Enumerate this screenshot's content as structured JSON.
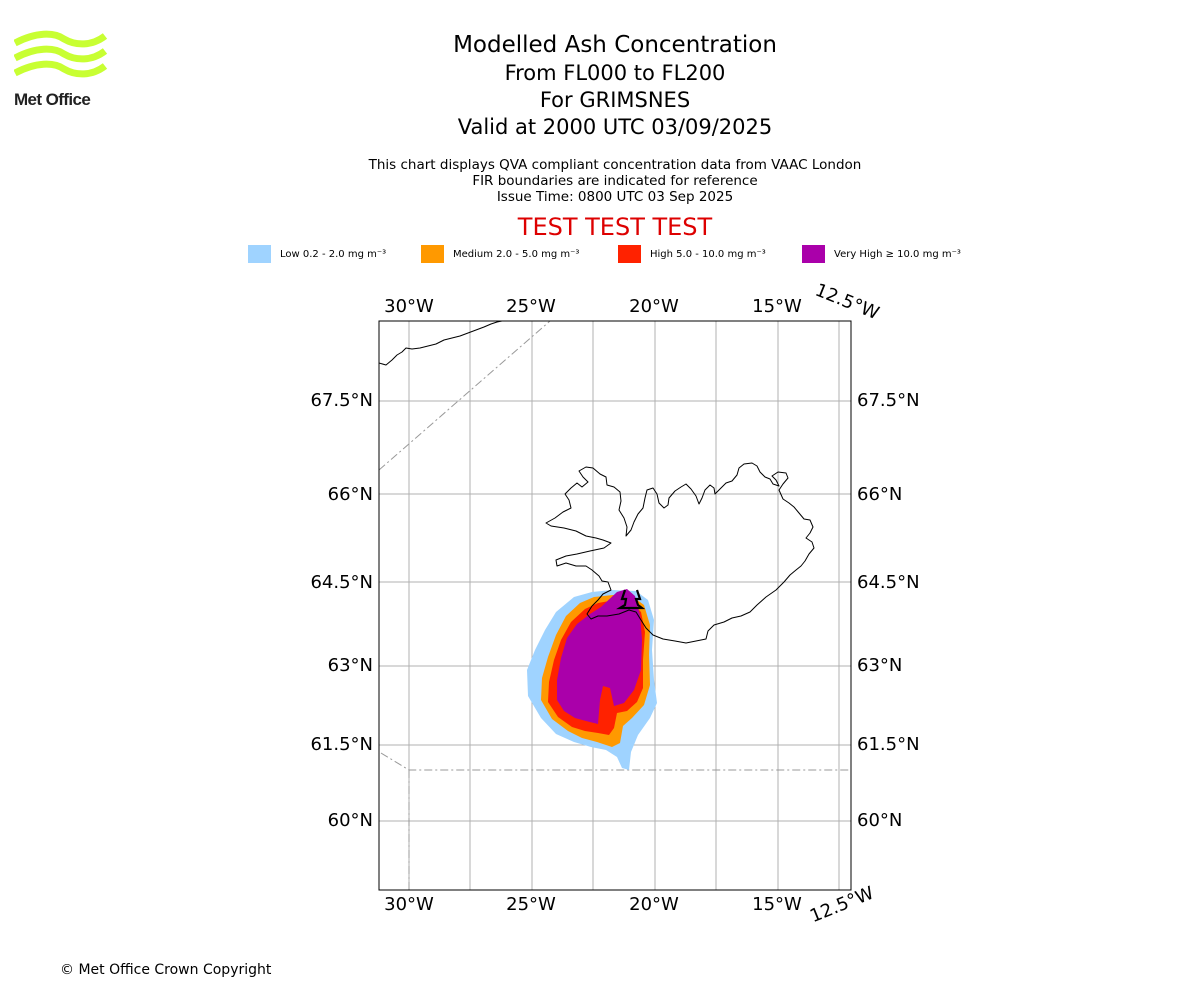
{
  "brand": {
    "name": "Met Office",
    "logo_color": "#c8ff33"
  },
  "header": {
    "title": "Modelled Ash Concentration",
    "levels": "From FL000 to FL200",
    "location": "For GRIMSNES",
    "valid": "Valid at 2000 UTC 03/09/2025"
  },
  "notes": {
    "line1": "This chart displays QVA compliant concentration data from VAAC London",
    "line2": "FIR boundaries are indicated for reference",
    "line3": "Issue Time: 0800 UTC 03 Sep 2025"
  },
  "test_banner": {
    "text": "TEST TEST TEST",
    "color": "#dd0000"
  },
  "legend": [
    {
      "label": "Low 0.2 - 2.0 mg m⁻³",
      "color": "#9fd3ff"
    },
    {
      "label": "Medium 2.0 - 5.0 mg m⁻³",
      "color": "#ff9900"
    },
    {
      "label": "High 5.0 - 10.0 mg m⁻³",
      "color": "#ff2200"
    },
    {
      "label": "Very High ≥ 10.0 mg m⁻³",
      "color": "#aa00aa"
    }
  ],
  "map": {
    "lon_ticks": [
      "30°W",
      "25°W",
      "20°W",
      "15°W"
    ],
    "lon_edge_tick": "12.5°W",
    "lat_ticks": [
      "67.5°N",
      "66°N",
      "64.5°N",
      "63°N",
      "61.5°N",
      "60°N"
    ],
    "coastline_color": "#000000",
    "gridline_color": "#b0b0b0",
    "fir_boundary_color": "#999999",
    "volcano": "GRIMSNES"
  },
  "footer": {
    "copyright": "© Met Office Crown Copyright"
  }
}
